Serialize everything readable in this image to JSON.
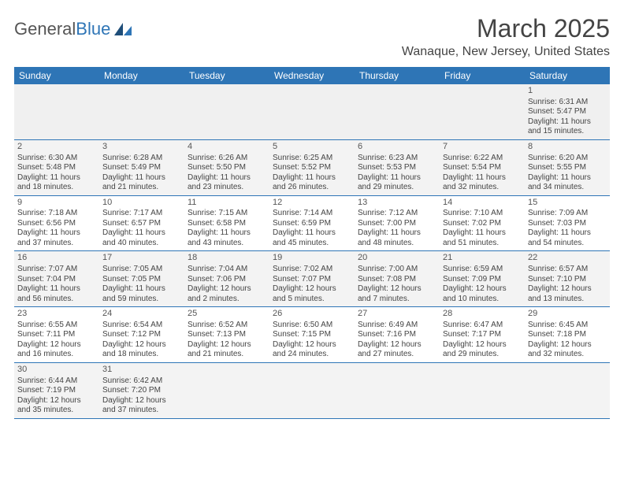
{
  "logo": {
    "text_a": "General",
    "text_b": "Blue"
  },
  "title": "March 2025",
  "location": "Wanaque, New Jersey, United States",
  "colors": {
    "header_bg": "#2e75b6",
    "header_text": "#ffffff",
    "alt_row_bg": "#f3f3f3",
    "border": "#2e75b6",
    "text": "#444444"
  },
  "day_labels": [
    "Sunday",
    "Monday",
    "Tuesday",
    "Wednesday",
    "Thursday",
    "Friday",
    "Saturday"
  ],
  "weeks": [
    [
      null,
      null,
      null,
      null,
      null,
      null,
      {
        "n": "1",
        "sr": "6:31 AM",
        "ss": "5:47 PM",
        "d1": "11 hours",
        "d2": "and 15 minutes."
      }
    ],
    [
      {
        "n": "2",
        "sr": "6:30 AM",
        "ss": "5:48 PM",
        "d1": "11 hours",
        "d2": "and 18 minutes."
      },
      {
        "n": "3",
        "sr": "6:28 AM",
        "ss": "5:49 PM",
        "d1": "11 hours",
        "d2": "and 21 minutes."
      },
      {
        "n": "4",
        "sr": "6:26 AM",
        "ss": "5:50 PM",
        "d1": "11 hours",
        "d2": "and 23 minutes."
      },
      {
        "n": "5",
        "sr": "6:25 AM",
        "ss": "5:52 PM",
        "d1": "11 hours",
        "d2": "and 26 minutes."
      },
      {
        "n": "6",
        "sr": "6:23 AM",
        "ss": "5:53 PM",
        "d1": "11 hours",
        "d2": "and 29 minutes."
      },
      {
        "n": "7",
        "sr": "6:22 AM",
        "ss": "5:54 PM",
        "d1": "11 hours",
        "d2": "and 32 minutes."
      },
      {
        "n": "8",
        "sr": "6:20 AM",
        "ss": "5:55 PM",
        "d1": "11 hours",
        "d2": "and 34 minutes."
      }
    ],
    [
      {
        "n": "9",
        "sr": "7:18 AM",
        "ss": "6:56 PM",
        "d1": "11 hours",
        "d2": "and 37 minutes."
      },
      {
        "n": "10",
        "sr": "7:17 AM",
        "ss": "6:57 PM",
        "d1": "11 hours",
        "d2": "and 40 minutes."
      },
      {
        "n": "11",
        "sr": "7:15 AM",
        "ss": "6:58 PM",
        "d1": "11 hours",
        "d2": "and 43 minutes."
      },
      {
        "n": "12",
        "sr": "7:14 AM",
        "ss": "6:59 PM",
        "d1": "11 hours",
        "d2": "and 45 minutes."
      },
      {
        "n": "13",
        "sr": "7:12 AM",
        "ss": "7:00 PM",
        "d1": "11 hours",
        "d2": "and 48 minutes."
      },
      {
        "n": "14",
        "sr": "7:10 AM",
        "ss": "7:02 PM",
        "d1": "11 hours",
        "d2": "and 51 minutes."
      },
      {
        "n": "15",
        "sr": "7:09 AM",
        "ss": "7:03 PM",
        "d1": "11 hours",
        "d2": "and 54 minutes."
      }
    ],
    [
      {
        "n": "16",
        "sr": "7:07 AM",
        "ss": "7:04 PM",
        "d1": "11 hours",
        "d2": "and 56 minutes."
      },
      {
        "n": "17",
        "sr": "7:05 AM",
        "ss": "7:05 PM",
        "d1": "11 hours",
        "d2": "and 59 minutes."
      },
      {
        "n": "18",
        "sr": "7:04 AM",
        "ss": "7:06 PM",
        "d1": "12 hours",
        "d2": "and 2 minutes."
      },
      {
        "n": "19",
        "sr": "7:02 AM",
        "ss": "7:07 PM",
        "d1": "12 hours",
        "d2": "and 5 minutes."
      },
      {
        "n": "20",
        "sr": "7:00 AM",
        "ss": "7:08 PM",
        "d1": "12 hours",
        "d2": "and 7 minutes."
      },
      {
        "n": "21",
        "sr": "6:59 AM",
        "ss": "7:09 PM",
        "d1": "12 hours",
        "d2": "and 10 minutes."
      },
      {
        "n": "22",
        "sr": "6:57 AM",
        "ss": "7:10 PM",
        "d1": "12 hours",
        "d2": "and 13 minutes."
      }
    ],
    [
      {
        "n": "23",
        "sr": "6:55 AM",
        "ss": "7:11 PM",
        "d1": "12 hours",
        "d2": "and 16 minutes."
      },
      {
        "n": "24",
        "sr": "6:54 AM",
        "ss": "7:12 PM",
        "d1": "12 hours",
        "d2": "and 18 minutes."
      },
      {
        "n": "25",
        "sr": "6:52 AM",
        "ss": "7:13 PM",
        "d1": "12 hours",
        "d2": "and 21 minutes."
      },
      {
        "n": "26",
        "sr": "6:50 AM",
        "ss": "7:15 PM",
        "d1": "12 hours",
        "d2": "and 24 minutes."
      },
      {
        "n": "27",
        "sr": "6:49 AM",
        "ss": "7:16 PM",
        "d1": "12 hours",
        "d2": "and 27 minutes."
      },
      {
        "n": "28",
        "sr": "6:47 AM",
        "ss": "7:17 PM",
        "d1": "12 hours",
        "d2": "and 29 minutes."
      },
      {
        "n": "29",
        "sr": "6:45 AM",
        "ss": "7:18 PM",
        "d1": "12 hours",
        "d2": "and 32 minutes."
      }
    ],
    [
      {
        "n": "30",
        "sr": "6:44 AM",
        "ss": "7:19 PM",
        "d1": "12 hours",
        "d2": "and 35 minutes."
      },
      {
        "n": "31",
        "sr": "6:42 AM",
        "ss": "7:20 PM",
        "d1": "12 hours",
        "d2": "and 37 minutes."
      },
      null,
      null,
      null,
      null,
      null
    ]
  ]
}
